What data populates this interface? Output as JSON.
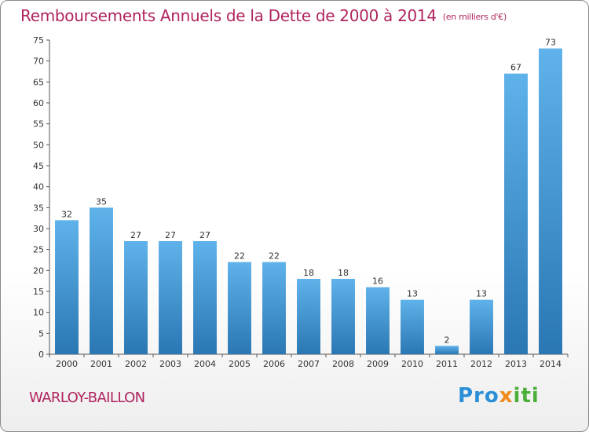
{
  "title": "Remboursements Annuels de la Dette de 2000 à 2014",
  "unit": "(en milliers d'€)",
  "commune": "WARLOY-BAILLON",
  "logo": {
    "part1": "Pro",
    "part2": "x",
    "part3": "iti"
  },
  "colors": {
    "title": "#b0245f",
    "bar_top": "#5fb2ea",
    "bar_bottom": "#2a77b3"
  },
  "chart_data": {
    "type": "bar",
    "title": "Remboursements Annuels de la Dette de 2000 à 2014",
    "categories": [
      "2000",
      "2001",
      "2002",
      "2003",
      "2004",
      "2005",
      "2006",
      "2007",
      "2008",
      "2009",
      "2010",
      "2011",
      "2012",
      "2013",
      "2014"
    ],
    "values": [
      32,
      35,
      27,
      27,
      27,
      22,
      22,
      18,
      18,
      16,
      13,
      2,
      13,
      67,
      73
    ],
    "ylim": [
      0,
      75
    ],
    "yticks": [
      0,
      5,
      10,
      15,
      20,
      25,
      30,
      35,
      40,
      45,
      50,
      55,
      60,
      65,
      70,
      75
    ],
    "grid": false,
    "data_labels": true
  }
}
